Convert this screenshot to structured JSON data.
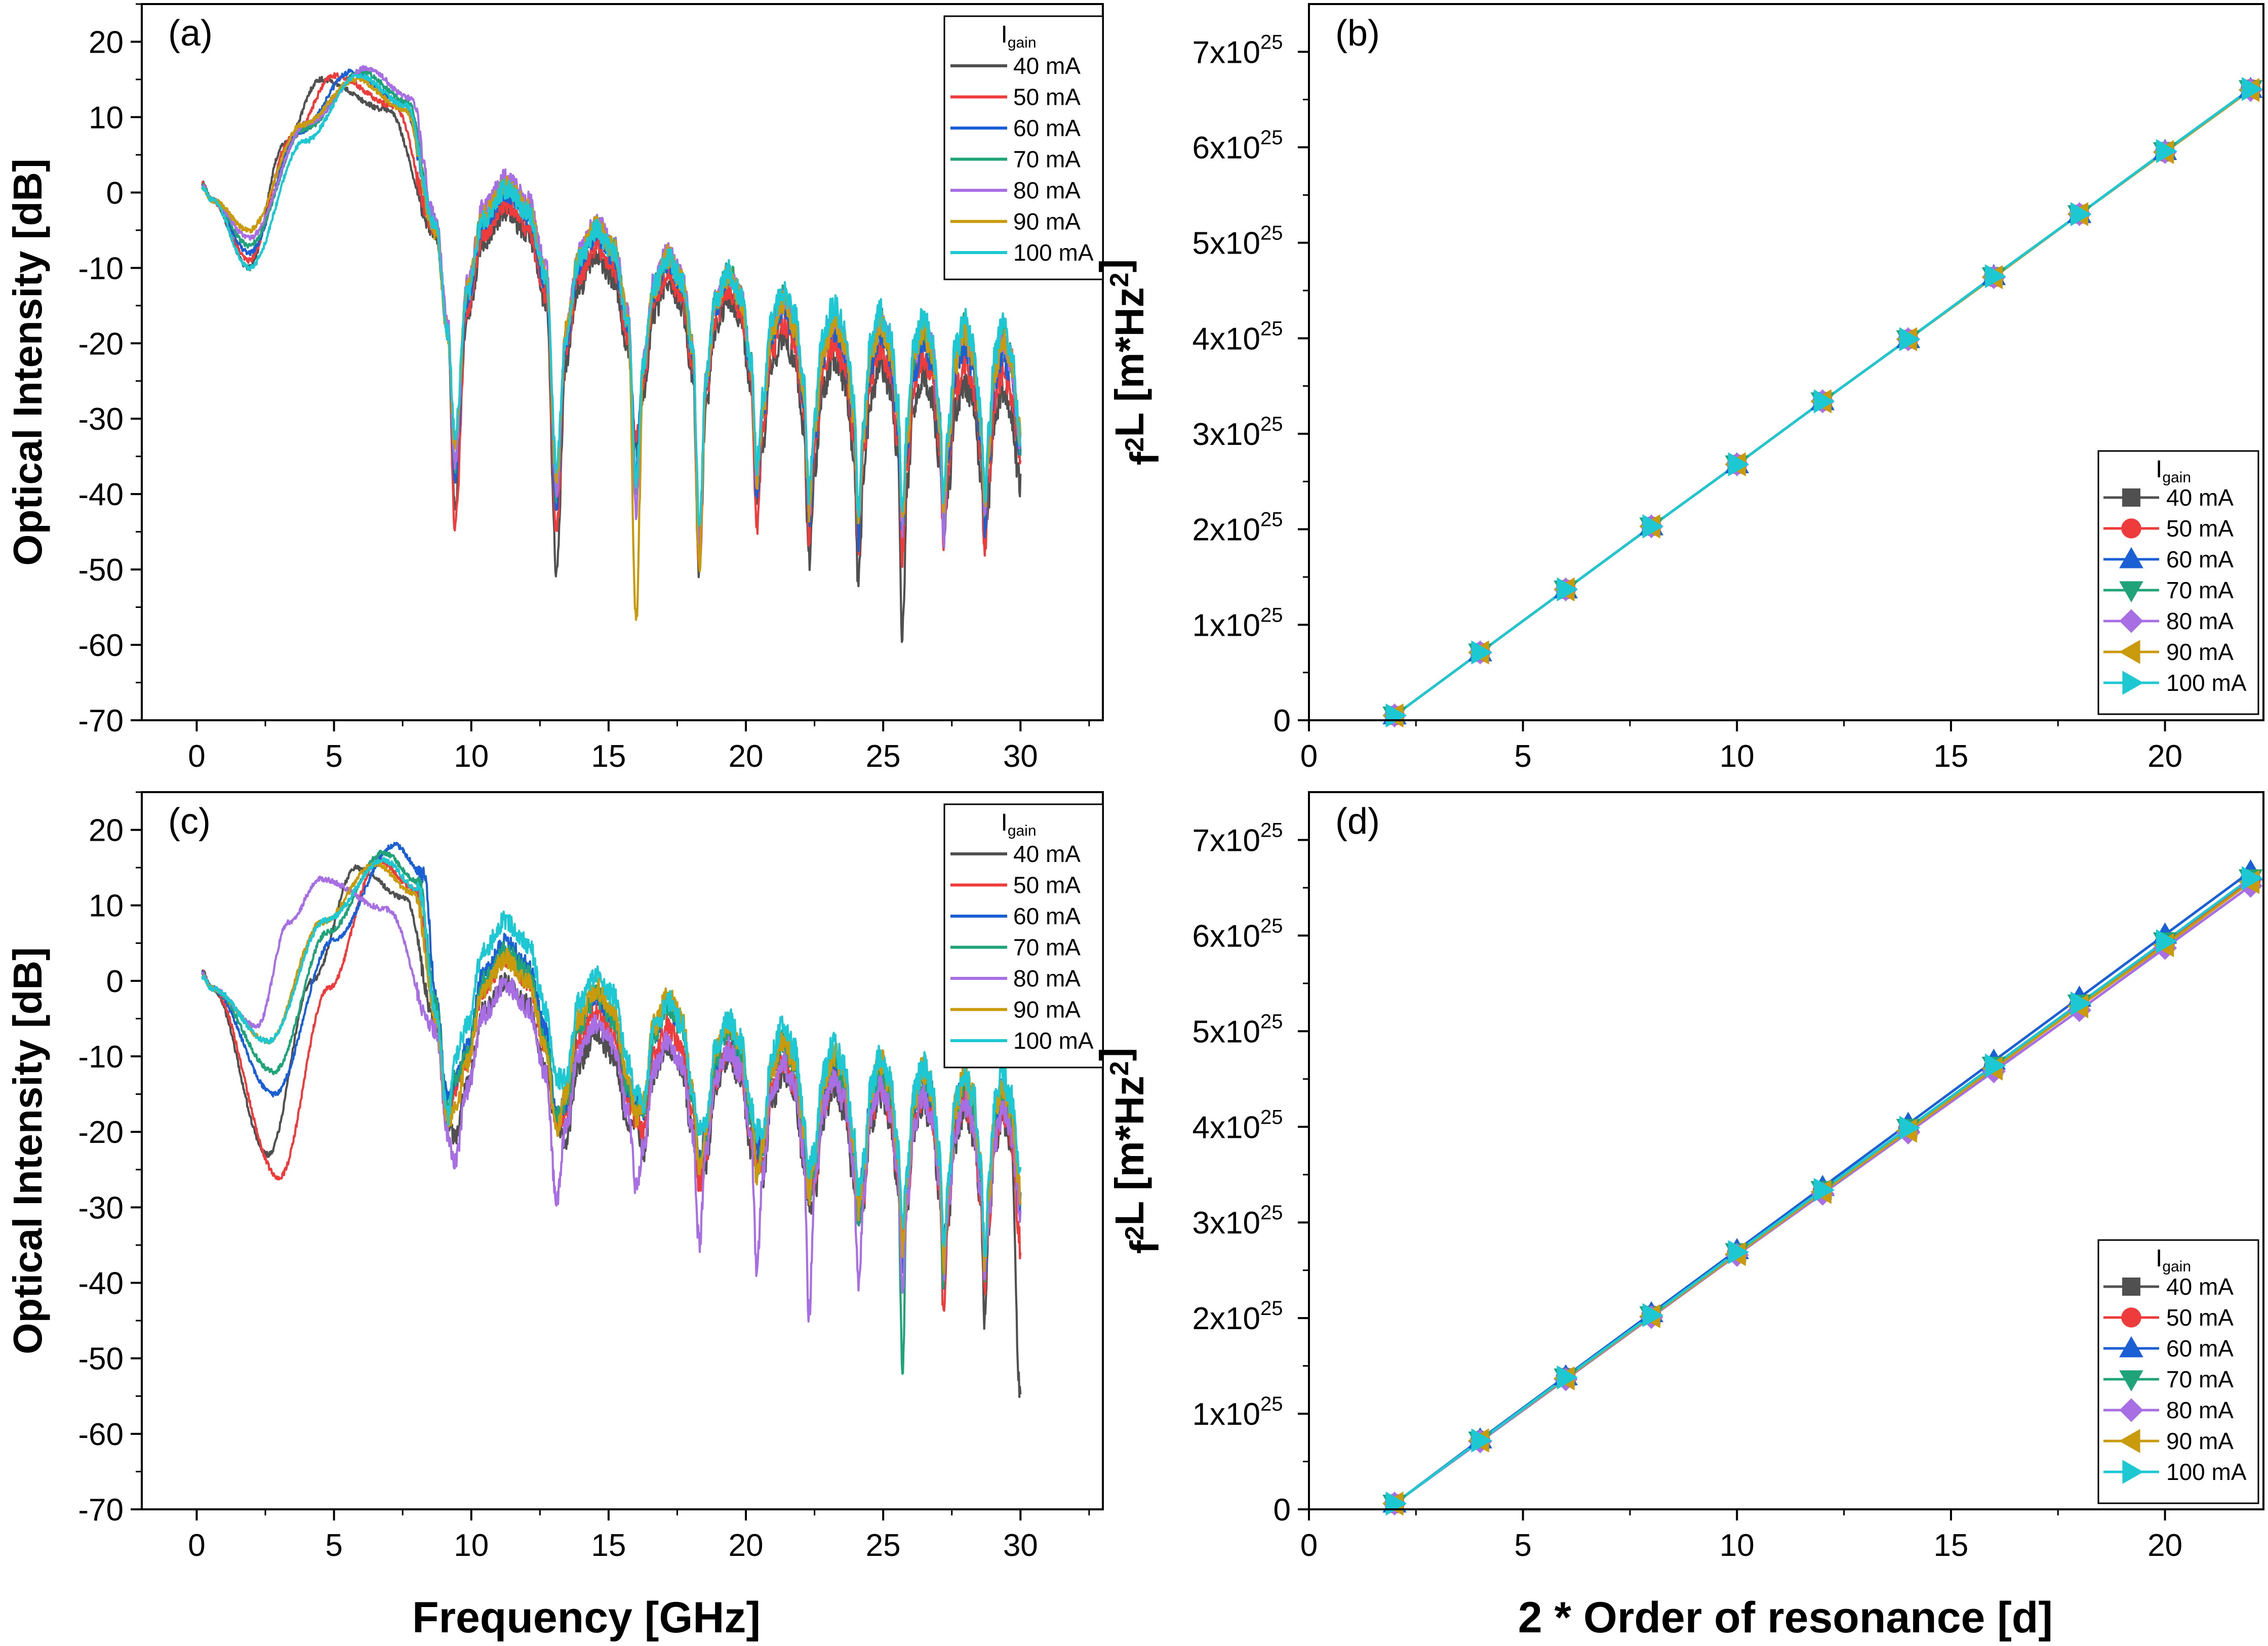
{
  "figure": {
    "x_title_left": "Frequency [GHz]",
    "x_title_right": "2 * Order of resonance [d]",
    "legend_title_main": "I",
    "legend_title_sub": "gain",
    "series_colors": {
      "40 mA": "#505050",
      "50 mA": "#ee3b3b",
      "60 mA": "#1a5fd4",
      "70 mA": "#21a37a",
      "80 mA": "#a86ee3",
      "90 mA": "#c89a0c",
      "100 mA": "#1ec8d2"
    }
  },
  "chart_data": [
    {
      "panel_label": "(a)",
      "type": "line",
      "xlabel": "",
      "ylabel": "Optical Intensity [dB]",
      "xlim": [
        -2,
        33
      ],
      "ylim": [
        -70,
        25
      ],
      "xticks": [
        "0",
        "5",
        "10",
        "15",
        "20",
        "25",
        "30"
      ],
      "yticks": [
        "-70",
        "-60",
        "-50",
        "-40",
        "-30",
        "-20",
        "-10",
        "0",
        "10",
        "20"
      ],
      "legend": {
        "position": "top-right",
        "title": "I gain",
        "markers": false
      },
      "resonance_dips_ghz": [
        1.9,
        9.4,
        13.1,
        16.0,
        18.3,
        20.4,
        22.3,
        24.1,
        25.7,
        27.2,
        28.7
      ],
      "series": [
        {
          "name": "40 mA",
          "peak_ghz": 4.5,
          "peak_db": 15.0,
          "lobe_peaks_db": [
            -2.5,
            -8.5,
            -12,
            -14,
            -19,
            -22,
            -23,
            -24,
            -25,
            -26
          ],
          "dip_depth_db": [
            -10,
            -42,
            -50,
            -34,
            -51,
            -41,
            -49,
            -52,
            -59,
            -44,
            -46,
            -39
          ]
        },
        {
          "name": "50 mA",
          "peak_ghz": 5.0,
          "peak_db": 15.5,
          "lobe_peaks_db": [
            -1.5,
            -7,
            -10.5,
            -12.5,
            -17,
            -20,
            -20.5,
            -21.5,
            -22.5,
            -23.5
          ],
          "dip_depth_db": [
            -9,
            -44,
            -45,
            -33,
            -50,
            -44,
            -46,
            -47,
            -48,
            -46,
            -48,
            -36
          ]
        },
        {
          "name": "60 mA",
          "peak_ghz": 5.6,
          "peak_db": 16.0,
          "lobe_peaks_db": [
            0,
            -5.5,
            -9,
            -11,
            -15,
            -18,
            -18.5,
            -19.5,
            -20,
            -21
          ],
          "dip_depth_db": [
            -8,
            -38,
            -42,
            -36,
            -47,
            -40,
            -44,
            -46,
            -45,
            -44,
            -44,
            -34
          ]
        },
        {
          "name": "70 mA",
          "peak_ghz": 6.0,
          "peak_db": 16.0,
          "lobe_peaks_db": [
            1,
            -4.5,
            -8.5,
            -10.5,
            -14,
            -16.5,
            -17,
            -17.5,
            -18,
            -19
          ],
          "dip_depth_db": [
            -7,
            -36,
            -40,
            -40,
            -46,
            -38,
            -42,
            -44,
            -44,
            -42,
            -42,
            -33
          ]
        },
        {
          "name": "80 mA",
          "peak_ghz": 6.2,
          "peak_db": 16.5,
          "lobe_peaks_db": [
            2,
            -4,
            -8,
            -10.5,
            -14,
            -16.5,
            -17,
            -17.5,
            -18,
            -19
          ],
          "dip_depth_db": [
            -6,
            -36,
            -40,
            -42,
            -46,
            -38,
            -42,
            -44,
            -44,
            -46,
            -42,
            -33
          ]
        },
        {
          "name": "90 mA",
          "peak_ghz": 5.8,
          "peak_db": 15.0,
          "lobe_peaks_db": [
            1,
            -4.5,
            -8.5,
            -11,
            -14.5,
            -17,
            -17.5,
            -18,
            -18.5,
            -19.5
          ],
          "dip_depth_db": [
            -5,
            -34,
            -38,
            -57,
            -50,
            -38,
            -42,
            -44,
            -44,
            -42,
            -42,
            -32
          ]
        },
        {
          "name": "100 mA",
          "peak_ghz": 5.9,
          "peak_db": 15.5,
          "lobe_peaks_db": [
            0.5,
            -5,
            -8.5,
            -10.5,
            -13,
            -15,
            -16,
            -16.5,
            -17,
            -17.5
          ],
          "dip_depth_db": [
            -10,
            -32,
            -36,
            -38,
            -44,
            -36,
            -40,
            -42,
            -42,
            -40,
            -40,
            -32
          ]
        }
      ]
    },
    {
      "panel_label": "(b)",
      "type": "line",
      "markers": true,
      "xlabel": "",
      "ylabel": "f²L [m*Hz²]",
      "ylabel_main": "f",
      "ylabel_sup": "2",
      "ylabel_rest": "L [m*Hz",
      "ylabel_sup2": "2",
      "ylabel_end": "]",
      "xlim": [
        0,
        22.3
      ],
      "ylim": [
        0,
        7.5e+25
      ],
      "xticks": [
        "0",
        "5",
        "10",
        "15",
        "20"
      ],
      "yticks": [
        {
          "base": "0",
          "exp": ""
        },
        {
          "base": "1x10",
          "exp": "25"
        },
        {
          "base": "2x10",
          "exp": "25"
        },
        {
          "base": "3x10",
          "exp": "25"
        },
        {
          "base": "4x10",
          "exp": "25"
        },
        {
          "base": "5x10",
          "exp": "25"
        },
        {
          "base": "6x10",
          "exp": "25"
        },
        {
          "base": "7x10",
          "exp": "25"
        }
      ],
      "legend": {
        "position": "bottom-right",
        "title": "I gain",
        "markers": true
      },
      "x": [
        2,
        4,
        6,
        8,
        10,
        12,
        14,
        16,
        18,
        20,
        22
      ],
      "series": [
        {
          "name": "40 mA",
          "marker": "square",
          "values": [
            5e+23,
            7.1e+24,
            1.37e+25,
            2.03e+25,
            2.68e+25,
            3.34e+25,
            3.99e+25,
            4.65e+25,
            5.3e+25,
            5.96e+25,
            6.61e+25
          ]
        },
        {
          "name": "50 mA",
          "marker": "circle",
          "values": [
            5e+23,
            7.1e+24,
            1.37e+25,
            2.03e+25,
            2.68e+25,
            3.34e+25,
            3.99e+25,
            4.64e+25,
            5.3e+25,
            5.95e+25,
            6.61e+25
          ]
        },
        {
          "name": "60 mA",
          "marker": "triangle-up",
          "values": [
            5e+23,
            7.1e+24,
            1.37e+25,
            2.03e+25,
            2.68e+25,
            3.34e+25,
            3.99e+25,
            4.65e+25,
            5.3e+25,
            5.96e+25,
            6.61e+25
          ]
        },
        {
          "name": "70 mA",
          "marker": "triangle-down",
          "values": [
            5e+23,
            7.1e+24,
            1.37e+25,
            2.03e+25,
            2.68e+25,
            3.34e+25,
            3.99e+25,
            4.65e+25,
            5.3e+25,
            5.96e+25,
            6.61e+25
          ]
        },
        {
          "name": "80 mA",
          "marker": "diamond",
          "values": [
            5e+23,
            7.1e+24,
            1.37e+25,
            2.03e+25,
            2.68e+25,
            3.34e+25,
            3.99e+25,
            4.64e+25,
            5.3e+25,
            5.95e+25,
            6.6e+25
          ]
        },
        {
          "name": "90 mA",
          "marker": "triangle-left",
          "values": [
            5e+23,
            7.1e+24,
            1.37e+25,
            2.03e+25,
            2.68e+25,
            3.34e+25,
            3.99e+25,
            4.64e+25,
            5.3e+25,
            5.95e+25,
            6.6e+25
          ]
        },
        {
          "name": "100 mA",
          "marker": "triangle-right",
          "values": [
            5e+23,
            7.1e+24,
            1.37e+25,
            2.03e+25,
            2.68e+25,
            3.34e+25,
            3.99e+25,
            4.65e+25,
            5.3e+25,
            5.96e+25,
            6.61e+25
          ]
        }
      ]
    },
    {
      "panel_label": "(c)",
      "type": "line",
      "xlabel": "Frequency [GHz]",
      "ylabel": "Optical Intensity [dB]",
      "xlim": [
        -2,
        33
      ],
      "ylim": [
        -70,
        25
      ],
      "xticks": [
        "0",
        "5",
        "10",
        "15",
        "20",
        "25",
        "30"
      ],
      "yticks": [
        "-70",
        "-60",
        "-50",
        "-40",
        "-30",
        "-20",
        "-10",
        "0",
        "10",
        "20"
      ],
      "legend": {
        "position": "top-right",
        "title": "I gain",
        "markers": false
      },
      "resonance_dips_ghz": [
        2.8,
        9.4,
        13.1,
        16.0,
        18.3,
        20.4,
        22.3,
        24.1,
        25.7,
        27.2,
        28.7
      ],
      "series": [
        {
          "name": "40 mA",
          "first_dip_ghz": 2.6,
          "peak_ghz": 5.8,
          "peak_db": 15.0,
          "lobe_peaks_db": [
            0,
            -7,
            -8.5,
            -10,
            -12,
            -14,
            -15,
            -16,
            -17,
            -18
          ],
          "dip_depth_db": [
            -23,
            -21,
            -19,
            -19,
            -26,
            -22,
            -30,
            -30,
            -33,
            -35,
            -45,
            -55
          ]
        },
        {
          "name": "50 mA",
          "first_dip_ghz": 3.0,
          "peak_ghz": 6.6,
          "peak_db": 16.0,
          "lobe_peaks_db": [
            3,
            -4,
            -6,
            -9,
            -10.5,
            -12.5,
            -14,
            -15,
            -16,
            -17
          ],
          "dip_depth_db": [
            -26,
            -14,
            -19,
            -18,
            -27,
            -24,
            -28,
            -30,
            -35,
            -44,
            -40,
            -35
          ]
        },
        {
          "name": "60 mA",
          "first_dip_ghz": 2.8,
          "peak_ghz": 7.2,
          "peak_db": 18.0,
          "lobe_peaks_db": [
            5,
            -2,
            -3,
            -6.5,
            -7.5,
            -10,
            -11,
            -12,
            -13,
            -14
          ],
          "dip_depth_db": [
            -15,
            -13,
            -18,
            -16,
            -24,
            -22,
            -27,
            -30,
            -37,
            -39,
            -39,
            -30
          ]
        },
        {
          "name": "70 mA",
          "first_dip_ghz": 2.8,
          "peak_ghz": 6.8,
          "peak_db": 17.0,
          "lobe_peaks_db": [
            4,
            -2,
            -3,
            -6.5,
            -8,
            -10.5,
            -11.5,
            -12.5,
            -13.5,
            -14.5
          ],
          "dip_depth_db": [
            -12,
            -13,
            -18,
            -17,
            -24,
            -25,
            -28,
            -32,
            -53,
            -40,
            -40,
            -30
          ]
        },
        {
          "name": "80 mA",
          "first_dip_ghz": 2.2,
          "peak_ghz": 4.5,
          "peak_db": 13.5,
          "lobe_peaks_db": [
            -0.5,
            -5.5,
            -8,
            -9,
            -11,
            -13,
            -14,
            -15,
            -16,
            -17
          ],
          "dip_depth_db": [
            -6,
            -24,
            -29,
            -27,
            -35,
            -38,
            -44,
            -40,
            -41,
            -38,
            -38,
            -30
          ]
        },
        {
          "name": "90 mA",
          "first_dip_ghz": 2.6,
          "peak_ghz": 6.5,
          "peak_db": 15.5,
          "lobe_peaks_db": [
            3,
            -1,
            -2,
            -5.5,
            -7.5,
            -9.5,
            -10.5,
            -11.5,
            -12.5,
            -13.5
          ],
          "dip_depth_db": [
            -8,
            -17,
            -20,
            -18,
            -25,
            -26,
            -28,
            -30,
            -35,
            -38,
            -38,
            -28
          ]
        },
        {
          "name": "100 mA",
          "first_dip_ghz": 2.6,
          "peak_ghz": 6.8,
          "peak_db": 16.0,
          "lobe_peaks_db": [
            8,
            1,
            -2.5,
            -5,
            -6,
            -8.5,
            -10,
            -11,
            -12,
            -12.5
          ],
          "dip_depth_db": [
            -8,
            -10,
            -13,
            -15,
            -20,
            -20,
            -25,
            -28,
            -32,
            -35,
            -36,
            -26
          ]
        }
      ]
    },
    {
      "panel_label": "(d)",
      "type": "line",
      "markers": true,
      "xlabel": "2 * Order of resonance [d]",
      "ylabel": "f²L [m*Hz²]",
      "ylabel_main": "f",
      "ylabel_sup": "2",
      "ylabel_rest": "L [m*Hz",
      "ylabel_sup2": "2",
      "ylabel_end": "]",
      "xlim": [
        0,
        22.3
      ],
      "ylim": [
        0,
        7.5e+25
      ],
      "xticks": [
        "0",
        "5",
        "10",
        "15",
        "20"
      ],
      "yticks": [
        {
          "base": "0",
          "exp": ""
        },
        {
          "base": "1x10",
          "exp": "25"
        },
        {
          "base": "2x10",
          "exp": "25"
        },
        {
          "base": "3x10",
          "exp": "25"
        },
        {
          "base": "4x10",
          "exp": "25"
        },
        {
          "base": "5x10",
          "exp": "25"
        },
        {
          "base": "6x10",
          "exp": "25"
        },
        {
          "base": "7x10",
          "exp": "25"
        }
      ],
      "legend": {
        "position": "bottom-right",
        "title": "I gain",
        "markers": true
      },
      "x": [
        2,
        4,
        6,
        8,
        10,
        12,
        14,
        16,
        18,
        20,
        22
      ],
      "series": [
        {
          "name": "40 mA",
          "marker": "square",
          "values": [
            6e+23,
            7.2e+24,
            1.38e+25,
            2.03e+25,
            2.68e+25,
            3.33e+25,
            3.98e+25,
            4.63e+25,
            5.29e+25,
            5.94e+25,
            6.59e+25
          ]
        },
        {
          "name": "50 mA",
          "marker": "circle",
          "values": [
            6e+23,
            7.2e+24,
            1.38e+25,
            2.03e+25,
            2.68e+25,
            3.33e+25,
            3.98e+25,
            4.63e+25,
            5.28e+25,
            5.93e+25,
            6.58e+25
          ]
        },
        {
          "name": "60 mA",
          "marker": "triangle-up",
          "values": [
            6e+23,
            7.3e+24,
            1.39e+25,
            2.05e+25,
            2.71e+25,
            3.37e+25,
            4.03e+25,
            4.69e+25,
            5.35e+25,
            6.01e+25,
            6.67e+25
          ]
        },
        {
          "name": "70 mA",
          "marker": "triangle-down",
          "values": [
            6e+23,
            7.2e+24,
            1.38e+25,
            2.03e+25,
            2.69e+25,
            3.34e+25,
            3.99e+25,
            4.64e+25,
            5.29e+25,
            5.94e+25,
            6.6e+25
          ]
        },
        {
          "name": "80 mA",
          "marker": "diamond",
          "values": [
            6e+23,
            7.1e+24,
            1.36e+25,
            2.01e+25,
            2.66e+25,
            3.3e+25,
            3.94e+25,
            4.58e+25,
            5.22e+25,
            5.87e+25,
            6.52e+25
          ]
        },
        {
          "name": "90 mA",
          "marker": "triangle-left",
          "values": [
            6e+23,
            7.2e+24,
            1.37e+25,
            2.02e+25,
            2.67e+25,
            3.32e+25,
            3.96e+25,
            4.61e+25,
            5.26e+25,
            5.9e+25,
            6.56e+25
          ]
        },
        {
          "name": "100 mA",
          "marker": "triangle-right",
          "values": [
            6e+23,
            7.2e+24,
            1.38e+25,
            2.03e+25,
            2.69e+25,
            3.34e+25,
            3.99e+25,
            4.64e+25,
            5.29e+25,
            5.94e+25,
            6.6e+25
          ]
        }
      ]
    }
  ]
}
